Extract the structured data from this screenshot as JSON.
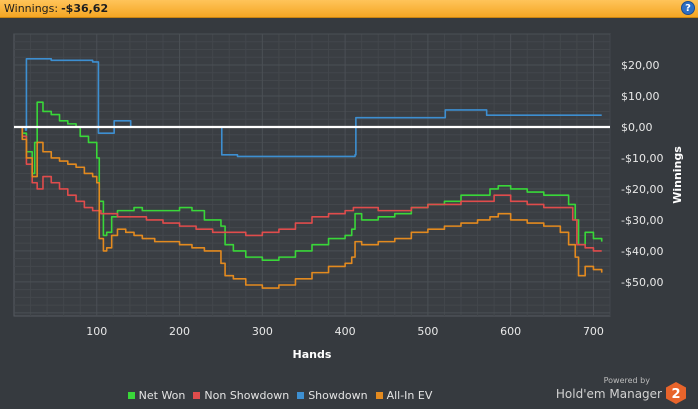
{
  "title_bar": {
    "label": "Winnings:",
    "value": "-$36,62",
    "help_icon": "help-icon",
    "help_glyph": "?"
  },
  "branding": {
    "powered_by": "Powered by",
    "product": "Hold'em Manager",
    "version": "2",
    "logo_color": "#e8642b"
  },
  "colors": {
    "titlebar": "#f5a623",
    "background": "#363a3f",
    "grid": "#4b5055",
    "zero_line": "#ffffff"
  },
  "chart_data": {
    "type": "line",
    "xlabel": "Hands",
    "ylabel": "Winnings",
    "xlim": [
      0,
      720
    ],
    "ylim": [
      -61,
      30
    ],
    "x_ticks": [
      100,
      200,
      300,
      400,
      500,
      600,
      700
    ],
    "x_tick_labels": [
      "100",
      "200",
      "300",
      "400",
      "500",
      "600",
      "700"
    ],
    "y_ticks": [
      20,
      10,
      0,
      -10,
      -20,
      -30,
      -40,
      -50
    ],
    "y_tick_labels": [
      "$20,00",
      "$10,00",
      "$0,00",
      "-$10,00",
      "-$20,00",
      "-$30,00",
      "-$40,00",
      "-$50,00"
    ],
    "zero_line": 0,
    "grid": true,
    "legend_position": "bottom",
    "series": [
      {
        "name": "Net Won",
        "color": "#39d739",
        "points": [
          [
            0,
            0
          ],
          [
            10,
            -2
          ],
          [
            15,
            -8
          ],
          [
            22,
            -15
          ],
          [
            25,
            -5
          ],
          [
            28,
            8
          ],
          [
            35,
            5
          ],
          [
            45,
            4
          ],
          [
            55,
            2
          ],
          [
            65,
            1
          ],
          [
            75,
            0
          ],
          [
            80,
            -3
          ],
          [
            90,
            -5
          ],
          [
            100,
            -10
          ],
          [
            103,
            -24
          ],
          [
            108,
            -35
          ],
          [
            112,
            -34
          ],
          [
            118,
            -29
          ],
          [
            125,
            -27
          ],
          [
            135,
            -27
          ],
          [
            145,
            -26
          ],
          [
            155,
            -27
          ],
          [
            170,
            -27
          ],
          [
            200,
            -26
          ],
          [
            215,
            -27
          ],
          [
            230,
            -30
          ],
          [
            250,
            -32
          ],
          [
            255,
            -38
          ],
          [
            265,
            -40
          ],
          [
            280,
            -42
          ],
          [
            300,
            -43
          ],
          [
            320,
            -42
          ],
          [
            340,
            -40
          ],
          [
            360,
            -38
          ],
          [
            380,
            -36
          ],
          [
            400,
            -35
          ],
          [
            408,
            -33
          ],
          [
            412,
            -28
          ],
          [
            420,
            -30
          ],
          [
            440,
            -29
          ],
          [
            460,
            -28
          ],
          [
            480,
            -26
          ],
          [
            500,
            -25
          ],
          [
            520,
            -24
          ],
          [
            540,
            -22
          ],
          [
            560,
            -22
          ],
          [
            575,
            -20
          ],
          [
            585,
            -19
          ],
          [
            600,
            -20
          ],
          [
            620,
            -21
          ],
          [
            640,
            -22
          ],
          [
            660,
            -22
          ],
          [
            670,
            -25
          ],
          [
            678,
            -30
          ],
          [
            682,
            -38
          ],
          [
            690,
            -34
          ],
          [
            700,
            -36
          ],
          [
            710,
            -37
          ]
        ]
      },
      {
        "name": "Non Showdown",
        "color": "#e04c4c",
        "points": [
          [
            0,
            0
          ],
          [
            10,
            -3
          ],
          [
            15,
            -12
          ],
          [
            22,
            -18
          ],
          [
            28,
            -20
          ],
          [
            35,
            -16
          ],
          [
            45,
            -18
          ],
          [
            55,
            -20
          ],
          [
            65,
            -22
          ],
          [
            75,
            -24
          ],
          [
            85,
            -26
          ],
          [
            95,
            -27
          ],
          [
            105,
            -28
          ],
          [
            115,
            -28
          ],
          [
            125,
            -29
          ],
          [
            140,
            -29
          ],
          [
            160,
            -30
          ],
          [
            180,
            -31
          ],
          [
            200,
            -32
          ],
          [
            220,
            -33
          ],
          [
            240,
            -34
          ],
          [
            255,
            -34
          ],
          [
            265,
            -34
          ],
          [
            280,
            -35
          ],
          [
            300,
            -34
          ],
          [
            320,
            -33
          ],
          [
            340,
            -31
          ],
          [
            360,
            -29
          ],
          [
            380,
            -28
          ],
          [
            400,
            -27
          ],
          [
            410,
            -26
          ],
          [
            420,
            -26
          ],
          [
            440,
            -27
          ],
          [
            460,
            -27
          ],
          [
            480,
            -26
          ],
          [
            500,
            -25
          ],
          [
            520,
            -25
          ],
          [
            540,
            -24
          ],
          [
            560,
            -24
          ],
          [
            580,
            -22
          ],
          [
            600,
            -24
          ],
          [
            620,
            -25
          ],
          [
            640,
            -26
          ],
          [
            660,
            -26
          ],
          [
            675,
            -30
          ],
          [
            680,
            -38
          ],
          [
            690,
            -39
          ],
          [
            700,
            -40
          ],
          [
            710,
            -40
          ]
        ]
      },
      {
        "name": "Showdown",
        "color": "#3d8fd1",
        "points": [
          [
            0,
            0
          ],
          [
            14,
            -1
          ],
          [
            15,
            22
          ],
          [
            30,
            22
          ],
          [
            45,
            21.5
          ],
          [
            60,
            21.5
          ],
          [
            75,
            21.5
          ],
          [
            95,
            21
          ],
          [
            100,
            21
          ],
          [
            102,
            -2
          ],
          [
            120,
            -2
          ],
          [
            121,
            2
          ],
          [
            140,
            2
          ],
          [
            141,
            0
          ],
          [
            250,
            0
          ],
          [
            251,
            -9
          ],
          [
            270,
            -9.5
          ],
          [
            300,
            -9.5
          ],
          [
            320,
            -9.5
          ],
          [
            340,
            -9.5
          ],
          [
            360,
            -9.5
          ],
          [
            380,
            -9.5
          ],
          [
            400,
            -9.5
          ],
          [
            412,
            -9
          ],
          [
            413,
            3
          ],
          [
            450,
            3
          ],
          [
            520,
            3
          ],
          [
            521,
            5.5
          ],
          [
            570,
            5.5
          ],
          [
            571,
            3.8
          ],
          [
            600,
            3.8
          ],
          [
            650,
            3.8
          ],
          [
            710,
            3.8
          ]
        ]
      },
      {
        "name": "All-In EV",
        "color": "#e38a1f",
        "points": [
          [
            0,
            0
          ],
          [
            10,
            -4
          ],
          [
            15,
            -10
          ],
          [
            22,
            -16
          ],
          [
            28,
            -5
          ],
          [
            35,
            -8
          ],
          [
            45,
            -10
          ],
          [
            55,
            -11
          ],
          [
            65,
            -12
          ],
          [
            75,
            -13
          ],
          [
            85,
            -15
          ],
          [
            95,
            -16
          ],
          [
            100,
            -18
          ],
          [
            103,
            -36
          ],
          [
            108,
            -40
          ],
          [
            112,
            -39
          ],
          [
            118,
            -35
          ],
          [
            125,
            -33
          ],
          [
            135,
            -34
          ],
          [
            145,
            -35
          ],
          [
            155,
            -36
          ],
          [
            170,
            -37
          ],
          [
            200,
            -38
          ],
          [
            215,
            -39
          ],
          [
            230,
            -40
          ],
          [
            250,
            -44
          ],
          [
            255,
            -48
          ],
          [
            265,
            -49
          ],
          [
            280,
            -51
          ],
          [
            300,
            -52
          ],
          [
            320,
            -51
          ],
          [
            340,
            -49
          ],
          [
            360,
            -47
          ],
          [
            380,
            -45
          ],
          [
            400,
            -44
          ],
          [
            408,
            -42
          ],
          [
            412,
            -37
          ],
          [
            420,
            -38
          ],
          [
            440,
            -37
          ],
          [
            460,
            -36
          ],
          [
            480,
            -34
          ],
          [
            500,
            -33
          ],
          [
            520,
            -32
          ],
          [
            540,
            -31
          ],
          [
            560,
            -30
          ],
          [
            575,
            -29
          ],
          [
            585,
            -28
          ],
          [
            600,
            -30
          ],
          [
            620,
            -31
          ],
          [
            640,
            -32
          ],
          [
            660,
            -34
          ],
          [
            670,
            -38
          ],
          [
            678,
            -42
          ],
          [
            682,
            -48
          ],
          [
            690,
            -45
          ],
          [
            700,
            -46
          ],
          [
            710,
            -47
          ]
        ]
      }
    ]
  }
}
